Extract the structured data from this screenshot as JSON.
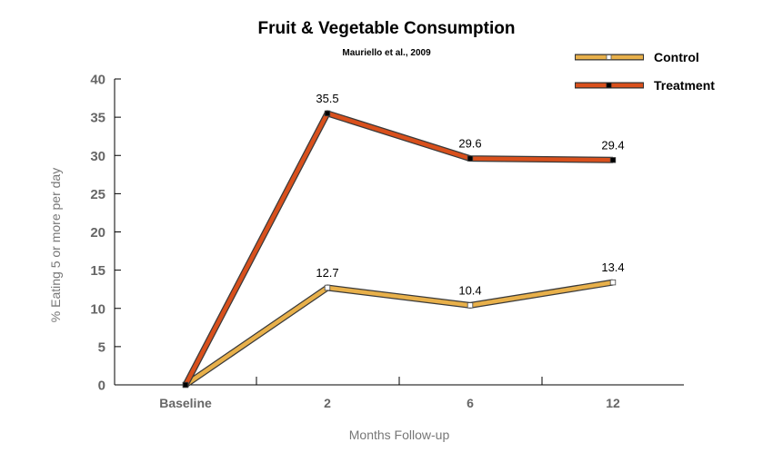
{
  "chart_data": {
    "type": "line",
    "title": "Fruit & Vegetable Consumption",
    "subtitle": "Mauriello et al., 2009",
    "xlabel": "Months Follow-up",
    "ylabel": "% Eating 5 or more per day",
    "categories": [
      "Baseline",
      "2",
      "6",
      "12"
    ],
    "ylim": [
      0,
      40
    ],
    "yticks": [
      "0",
      "5",
      "10",
      "15",
      "20",
      "25",
      "30",
      "35",
      "40"
    ],
    "grid": false,
    "legend_position": "top-right",
    "series": [
      {
        "name": "Control",
        "color": "#E8B04A",
        "marker_color": "#ffffff",
        "values": [
          0,
          12.7,
          10.4,
          13.4
        ],
        "labels": [
          "",
          "12.7",
          "10.4",
          "13.4"
        ]
      },
      {
        "name": "Treatment",
        "color": "#D9501C",
        "marker_color": "#000000",
        "values": [
          0,
          35.5,
          29.6,
          29.4
        ],
        "labels": [
          "",
          "35.5",
          "29.6",
          "29.4"
        ]
      }
    ]
  }
}
